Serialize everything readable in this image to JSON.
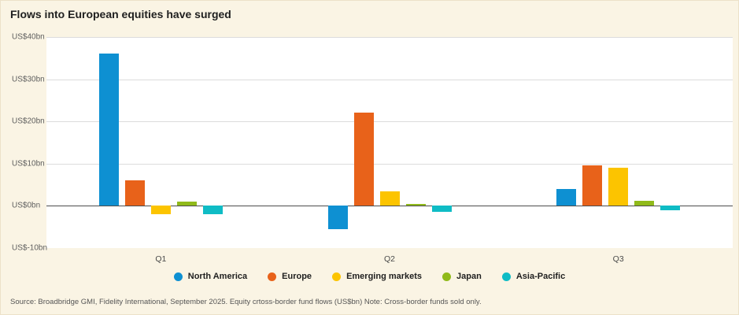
{
  "title": "Flows into European equities have surged",
  "source": "Source: Broadbridge GMI, Fidelity International, September 2025. Equity crtoss-border fund flows (US$bn) Note: Cross-border funds sold only.",
  "chart_data": {
    "type": "bar",
    "title": "Flows into European equities have surged",
    "categories": [
      "Q1",
      "Q2",
      "Q3"
    ],
    "series": [
      {
        "name": "North America",
        "color": "#0e90d2",
        "values": [
          36,
          -5.5,
          4
        ]
      },
      {
        "name": "Europe",
        "color": "#e8621a",
        "values": [
          6,
          22,
          9.5
        ]
      },
      {
        "name": "Emerging markets",
        "color": "#fcc400",
        "values": [
          -2,
          3.5,
          9
        ]
      },
      {
        "name": "Japan",
        "color": "#90ba1a",
        "values": [
          1,
          0.5,
          1.2
        ]
      },
      {
        "name": "Asia-Pacific",
        "color": "#0fbcc5",
        "values": [
          -2,
          -1.5,
          -1
        ]
      }
    ],
    "ylim": [
      -10,
      40
    ],
    "yticks": [
      {
        "value": 40,
        "label": "US$40bn",
        "line": true
      },
      {
        "value": 30,
        "label": "US$30bn",
        "line": true
      },
      {
        "value": 20,
        "label": "US$20bn",
        "line": true
      },
      {
        "value": 10,
        "label": "US$10bn",
        "line": true
      },
      {
        "value": 0,
        "label": "US$0bn",
        "line": true
      },
      {
        "value": -10,
        "label": "US$-10bn",
        "line": false
      }
    ],
    "grid": true,
    "legend_position": "bottom"
  }
}
